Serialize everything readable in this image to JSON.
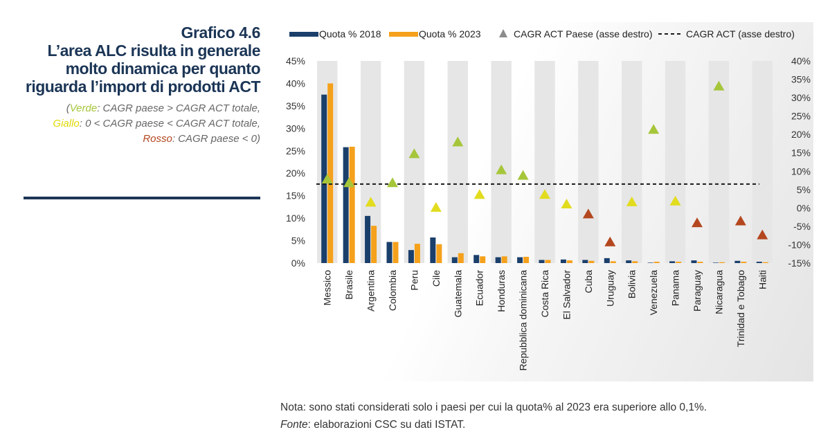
{
  "header": {
    "figure_number": "Grafico 4.6",
    "title": "L’area ALC risulta in generale molto dinamica per quanto riguarda l’import di prodotti ACT",
    "subtitle": {
      "verde_word": "Verde",
      "verde_rest": ": CAGR paese > CAGR ACT totale,",
      "giallo_word": "Giallo",
      "giallo_rest": ": 0 < CAGR paese < CAGR ACT totale,",
      "rosso_word": "Rosso",
      "rosso_rest": ": CAGR paese < 0)"
    }
  },
  "colors": {
    "bar_2018": "#1b3f6b",
    "bar_2023": "#f5a11c",
    "verde": "#a6c63a",
    "giallo": "#e2dc1e",
    "rosso": "#b4471f",
    "legend_triangle": "#8c8c8c",
    "band": "#e6e6e6",
    "title": "#1b3556"
  },
  "chart_data": {
    "type": "bar",
    "categories": [
      "Messico",
      "Brasile",
      "Argentina",
      "Colombia",
      "Peru",
      "Cile",
      "Guatemala",
      "Ecuador",
      "Honduras",
      "Repubblica dominicana",
      "Costa Rica",
      "El Salvador",
      "Cuba",
      "Uruguay",
      "Bolivia",
      "Venezuela",
      "Panama",
      "Paraguay",
      "Nicaragua",
      "Trinidad e Tobago",
      "Haiti"
    ],
    "series": [
      {
        "name": "Quota % 2018",
        "axis": "left",
        "values": [
          37.5,
          25.8,
          10.5,
          4.7,
          2.9,
          5.7,
          1.3,
          1.8,
          1.3,
          1.3,
          0.7,
          0.8,
          0.7,
          1.1,
          0.6,
          0.1,
          0.4,
          0.6,
          0.1,
          0.5,
          0.3
        ]
      },
      {
        "name": "Quota % 2023",
        "axis": "left",
        "values": [
          40.0,
          25.9,
          8.3,
          4.7,
          4.3,
          4.2,
          2.2,
          1.5,
          1.5,
          1.4,
          0.7,
          0.6,
          0.5,
          0.4,
          0.4,
          0.3,
          0.3,
          0.3,
          0.2,
          0.3,
          0.2
        ]
      },
      {
        "name": "CAGR ACT Paese (asse destro)",
        "axis": "right",
        "type": "scatter",
        "marker": "triangle",
        "values": [
          7.8,
          6.8,
          1.5,
          6.8,
          14.7,
          0.1,
          17.9,
          3.6,
          10.3,
          8.8,
          3.6,
          1.0,
          -1.7,
          -9.3,
          1.6,
          21.3,
          1.8,
          -4.1,
          33.1,
          -3.6,
          -7.4
        ],
        "colors": [
          "verde",
          "verde",
          "giallo",
          "verde",
          "verde",
          "giallo",
          "verde",
          "giallo",
          "verde",
          "verde",
          "giallo",
          "giallo",
          "rosso",
          "rosso",
          "giallo",
          "verde",
          "giallo",
          "rosso",
          "verde",
          "rosso",
          "rosso"
        ]
      },
      {
        "name": "CAGR ACT (asse destro)",
        "axis": "right",
        "type": "line",
        "style": "dashed",
        "value": 6.5
      }
    ],
    "y_left": {
      "min": 0,
      "max": 45,
      "ticks": [
        0,
        5,
        10,
        15,
        20,
        25,
        30,
        35,
        40,
        45
      ],
      "tick_labels": [
        "0%",
        "5%",
        "10%",
        "15%",
        "20%",
        "25%",
        "30%",
        "35%",
        "40%",
        "45%"
      ]
    },
    "y_right": {
      "min": -15,
      "max": 40,
      "ticks": [
        -15,
        -10,
        -5,
        0,
        5,
        10,
        15,
        20,
        25,
        30,
        35,
        40
      ],
      "tick_labels": [
        "-15%",
        "-10%",
        "-5%",
        "0%",
        "5%",
        "10%",
        "15%",
        "20%",
        "25%",
        "30%",
        "35%",
        "40%"
      ]
    },
    "legend_position": "top",
    "alternating_bands": true,
    "grid": false
  },
  "notes": {
    "nota": "Nota: sono stati considerati solo i paesi per cui la quota% al 2023 era superiore allo 0,1%.",
    "fonte_label": "Fonte",
    "fonte_rest": ": elaborazioni CSC su dati ISTAT."
  }
}
